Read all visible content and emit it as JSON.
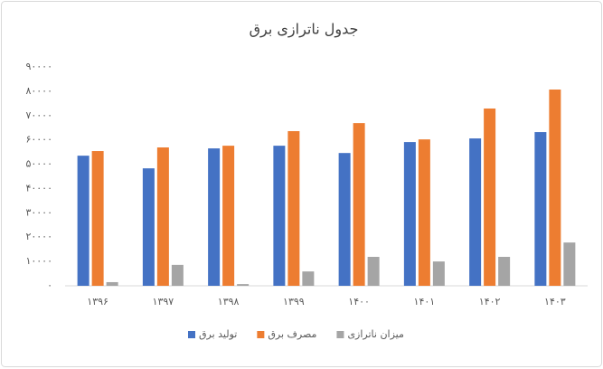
{
  "chart_data": {
    "type": "bar",
    "title": "جدول ناترازی برق",
    "categories": [
      "۱۳۹۶",
      "۱۳۹۷",
      "۱۳۹۸",
      "۱۳۹۹",
      "۱۴۰۰",
      "۱۴۰۱",
      "۱۴۰۲",
      "۱۴۰۳"
    ],
    "series": [
      {
        "name": "تولید برق",
        "color": "#4472c4",
        "values": [
          53500,
          48300,
          56500,
          57600,
          54600,
          59100,
          60600,
          63200
        ]
      },
      {
        "name": "مصرف برق",
        "color": "#ed7d31",
        "values": [
          55400,
          56900,
          57600,
          63600,
          66900,
          60200,
          72900,
          80700
        ]
      },
      {
        "name": "میزان ناترازی",
        "color": "#a5a5a5",
        "values": [
          1500,
          8600,
          700,
          5900,
          11900,
          10000,
          11900,
          17800
        ]
      }
    ],
    "ylim": [
      0,
      90000
    ],
    "yticks": [
      {
        "value": 0,
        "label": "۰"
      },
      {
        "value": 10000,
        "label": "۱۰۰۰۰"
      },
      {
        "value": 20000,
        "label": "۲۰۰۰۰"
      },
      {
        "value": 30000,
        "label": "۳۰۰۰۰"
      },
      {
        "value": 40000,
        "label": "۴۰۰۰۰"
      },
      {
        "value": 50000,
        "label": "۵۰۰۰۰"
      },
      {
        "value": 60000,
        "label": "۶۰۰۰۰"
      },
      {
        "value": 70000,
        "label": "۷۰۰۰۰"
      },
      {
        "value": 80000,
        "label": "۸۰۰۰۰"
      },
      {
        "value": 90000,
        "label": "۹۰۰۰۰"
      }
    ],
    "grid": false,
    "legend": "bottom"
  }
}
